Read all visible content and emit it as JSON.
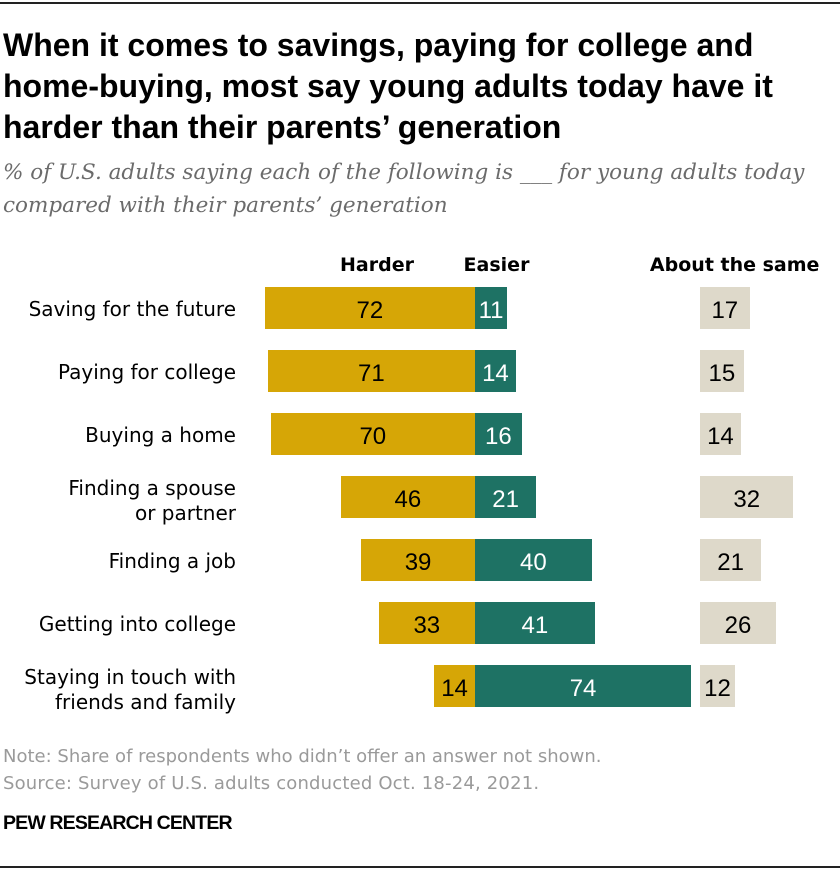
{
  "colors": {
    "harder": "#d6a606",
    "easier": "#1e7264",
    "same": "#ded9ca",
    "rule": "#222222",
    "note_gray": "#9a9a9a",
    "subtitle_gray": "#6b6b6b"
  },
  "header": {
    "title_lines": [
      "When it comes to savings, paying for college and",
      "home-buying, most say young adults today have it",
      "harder than their parents’ generation"
    ],
    "subtitle_lines": [
      "% of U.S. adults saying each of the following is ___ for young adults today",
      "compared with their parents’ generation"
    ]
  },
  "chart_data": {
    "type": "bar",
    "variant": "horizontal-diverging",
    "column_headers": {
      "harder": "Harder",
      "easier": "Easier",
      "same": "About the same"
    },
    "categories": [
      "Saving for the future",
      "Paying for college",
      "Buying a home",
      "Finding a spouse or partner",
      "Finding a job",
      "Getting into college",
      "Staying in touch with friends and family"
    ],
    "category_label_lines": [
      [
        "Saving for the future"
      ],
      [
        "Paying for college"
      ],
      [
        "Buying a home"
      ],
      [
        "Finding a spouse",
        "or partner"
      ],
      [
        "Finding a job"
      ],
      [
        "Getting into college"
      ],
      [
        "Staying in touch with",
        "friends and family"
      ]
    ],
    "series": [
      {
        "name": "Harder",
        "values": [
          72,
          71,
          70,
          46,
          39,
          33,
          14
        ]
      },
      {
        "name": "Easier",
        "values": [
          11,
          14,
          16,
          21,
          40,
          41,
          74
        ]
      },
      {
        "name": "About the same",
        "values": [
          17,
          15,
          14,
          32,
          21,
          26,
          12
        ]
      }
    ],
    "value_range": [
      0,
      100
    ],
    "legend_position": "top",
    "grid": false
  },
  "footer": {
    "note": "Note: Share of respondents who didn’t offer an answer not shown.",
    "source": "Source: Survey of U.S. adults conducted Oct. 18-24, 2021.",
    "brand": "PEW RESEARCH CENTER"
  }
}
